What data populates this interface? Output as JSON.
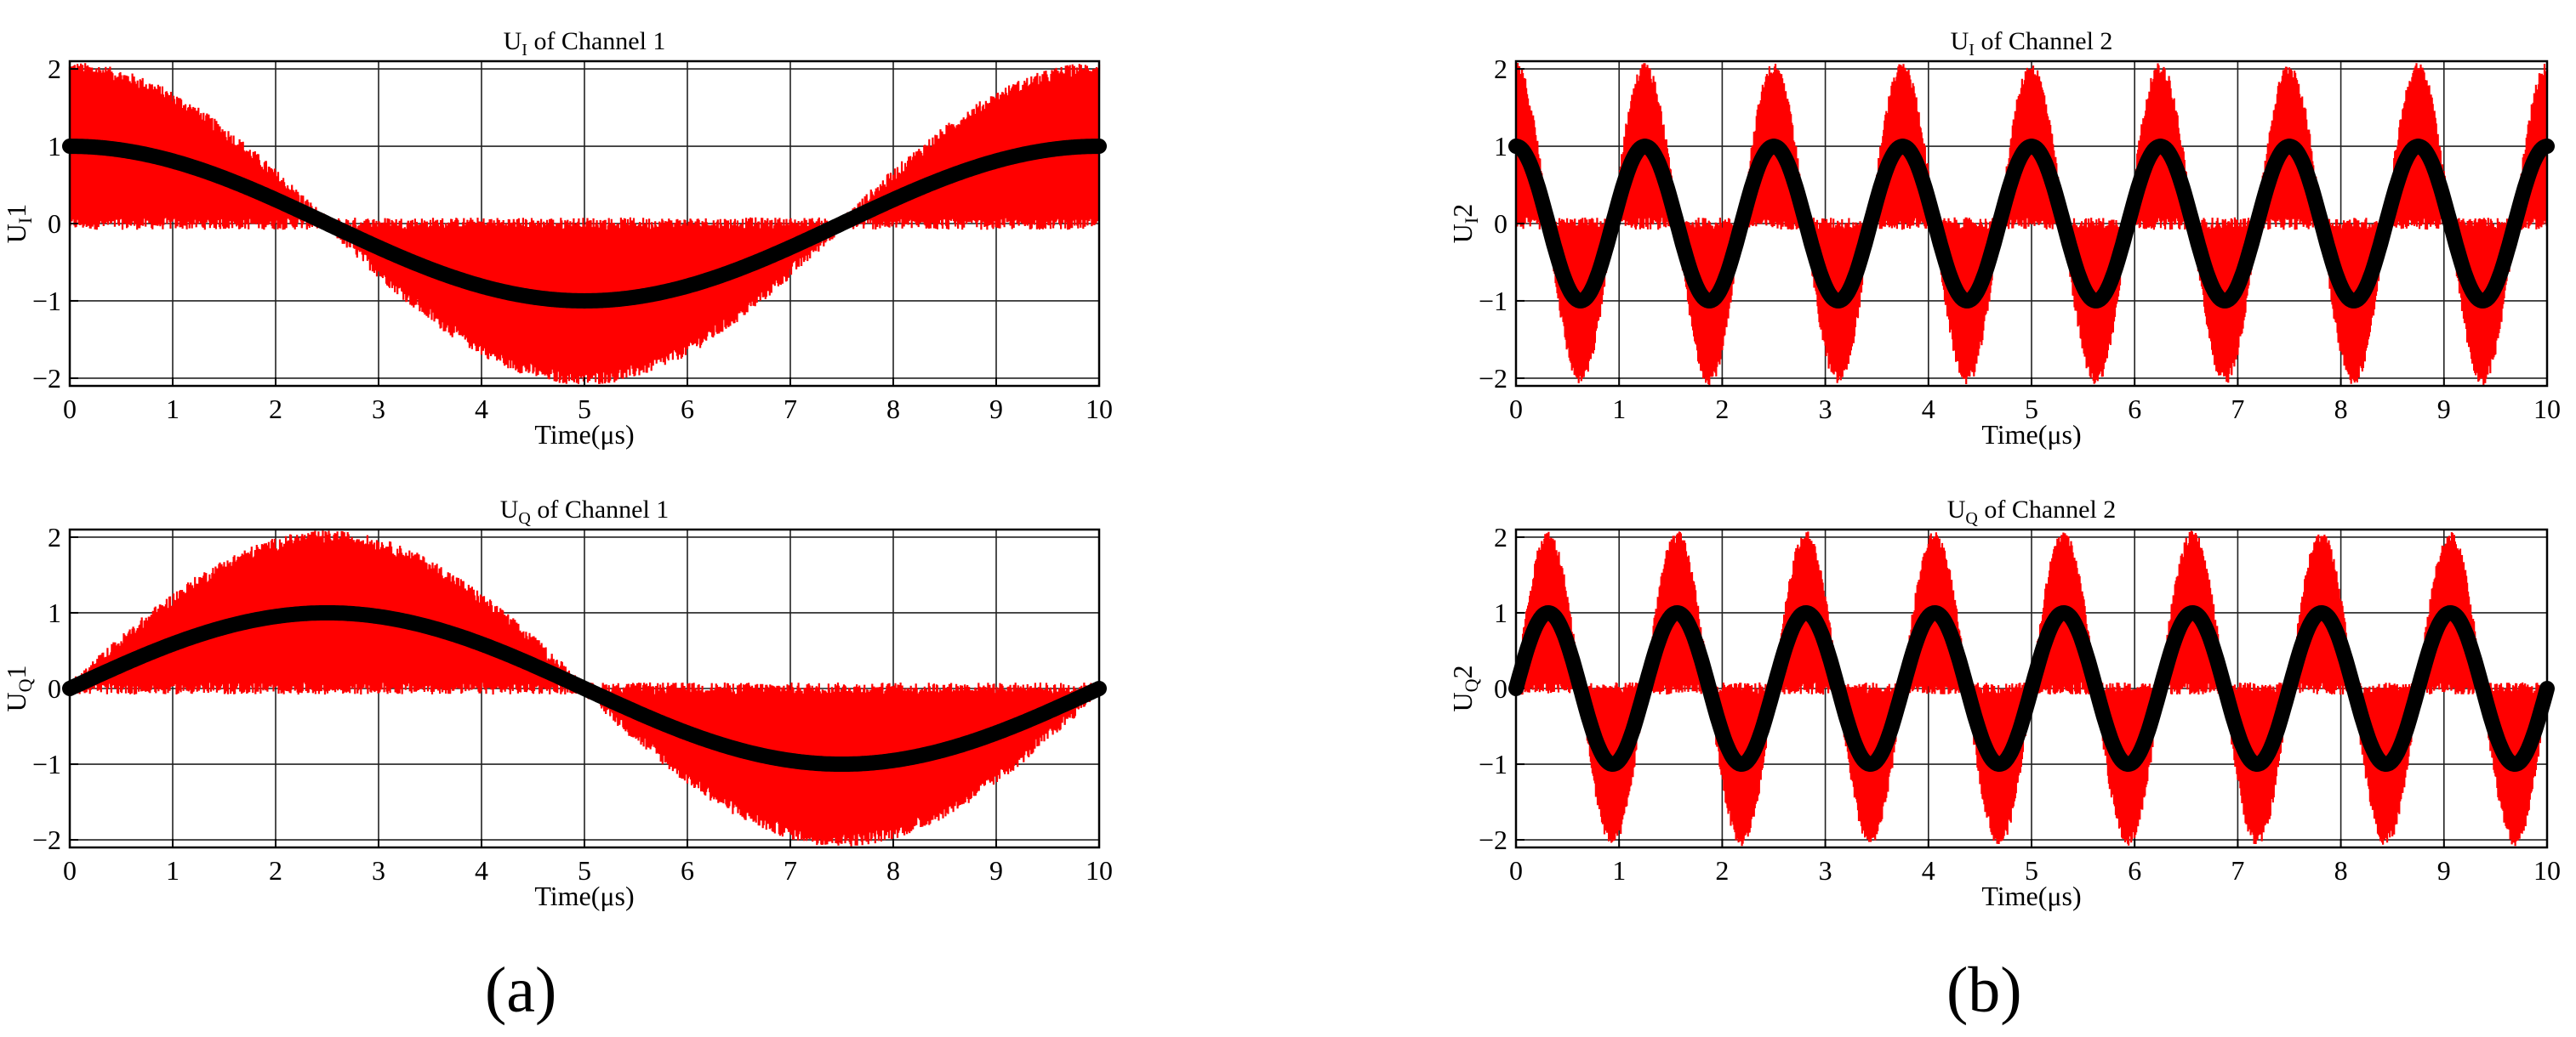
{
  "panel_labels": [
    "(a)",
    "(b)"
  ],
  "colors": {
    "raw": "#ff0000",
    "filtered": "#000000",
    "grid": "#222222",
    "axis": "#000000"
  },
  "chart_data": [
    {
      "type": "line",
      "panel": "(a)",
      "title": {
        "main": "U",
        "sub": "I",
        "rest": " of Channel 1"
      },
      "ylabel": {
        "main": "U",
        "sub": "I",
        "rest": "1"
      },
      "xlabel": "Time(μs)",
      "xlim": [
        0,
        10
      ],
      "ylim": [
        -2.1,
        2.1
      ],
      "xticks": [
        0,
        1,
        2,
        3,
        4,
        5,
        6,
        7,
        8,
        9,
        10
      ],
      "yticks": [
        -2,
        -1,
        0,
        1,
        2
      ],
      "ytick_labels": [
        "−2",
        "−1",
        "0",
        "1",
        "2"
      ],
      "grid": true,
      "signal": "cos",
      "periods_over_range": 1,
      "series": [
        {
          "values_description_x": [
            0,
            1.25,
            2.5,
            3.75,
            5,
            6.25,
            7.5,
            8.75,
            10
          ],
          "values": [
            1,
            0.71,
            0,
            -0.71,
            -1,
            -0.71,
            0,
            0.71,
            1
          ]
        },
        {
          "values_description_x": [
            0,
            1.25,
            2.5,
            3.75,
            5,
            6.25,
            7.5,
            8.75,
            10
          ],
          "values": [
            2,
            1.42,
            0,
            -1.42,
            -2,
            -1.42,
            0,
            1.42,
            2
          ]
        }
      ]
    },
    {
      "type": "line",
      "panel": "(b)",
      "title": {
        "main": "U",
        "sub": "I",
        "rest": " of Channel 2"
      },
      "ylabel": {
        "main": "U",
        "sub": "I",
        "rest": "2"
      },
      "xlabel": "Time(μs)",
      "xlim": [
        0,
        10
      ],
      "ylim": [
        -2.1,
        2.1
      ],
      "xticks": [
        0,
        1,
        2,
        3,
        4,
        5,
        6,
        7,
        8,
        9,
        10
      ],
      "yticks": [
        -2,
        -1,
        0,
        1,
        2
      ],
      "ytick_labels": [
        "−2",
        "−1",
        "0",
        "1",
        "2"
      ],
      "grid": true,
      "signal": "cos",
      "periods_over_range": 8,
      "series": [
        {
          "values_description_x": [
            0,
            0.625,
            1.25,
            1.875,
            2.5
          ],
          "values": [
            1,
            -1,
            1,
            -1,
            1
          ]
        },
        {
          "values_description_x": [
            0,
            0.625,
            1.25,
            1.875,
            2.5
          ],
          "values": [
            2,
            -2,
            2,
            -2,
            2
          ]
        }
      ]
    },
    {
      "type": "line",
      "panel": "(a)",
      "title": {
        "main": "U",
        "sub": "Q",
        "rest": " of Channel 1"
      },
      "ylabel": {
        "main": "U",
        "sub": "Q",
        "rest": "1"
      },
      "xlabel": "Time(μs)",
      "xlim": [
        0,
        10
      ],
      "ylim": [
        -2.1,
        2.1
      ],
      "xticks": [
        0,
        1,
        2,
        3,
        4,
        5,
        6,
        7,
        8,
        9,
        10
      ],
      "yticks": [
        -2,
        -1,
        0,
        1,
        2
      ],
      "ytick_labels": [
        "−2",
        "−1",
        "0",
        "1",
        "2"
      ],
      "grid": true,
      "signal": "sin",
      "periods_over_range": 1,
      "series": [
        {
          "values_description_x": [
            0,
            1.25,
            2.5,
            3.75,
            5,
            6.25,
            7.5,
            8.75,
            10
          ],
          "values": [
            0,
            0.71,
            1,
            0.71,
            0,
            -0.71,
            -1,
            -0.71,
            0
          ]
        },
        {
          "values_description_x": [
            0,
            1.25,
            2.5,
            3.75,
            5,
            6.25,
            7.5,
            8.75,
            10
          ],
          "values": [
            0,
            1.42,
            2,
            1.42,
            0,
            -1.42,
            -2,
            -1.42,
            0
          ]
        }
      ]
    },
    {
      "type": "line",
      "panel": "(b)",
      "title": {
        "main": "U",
        "sub": "Q",
        "rest": " of Channel 2"
      },
      "ylabel": {
        "main": "U",
        "sub": "Q",
        "rest": "2"
      },
      "xlabel": "Time(μs)",
      "xlim": [
        0,
        10
      ],
      "ylim": [
        -2.1,
        2.1
      ],
      "xticks": [
        0,
        1,
        2,
        3,
        4,
        5,
        6,
        7,
        8,
        9,
        10
      ],
      "yticks": [
        -2,
        -1,
        0,
        1,
        2
      ],
      "ytick_labels": [
        "−2",
        "−1",
        "0",
        "1",
        "2"
      ],
      "grid": true,
      "signal": "sin",
      "periods_over_range": 8,
      "series": [
        {
          "values_description_x": [
            0,
            0.3125,
            0.625,
            0.9375,
            1.25
          ],
          "values": [
            0,
            1,
            0,
            -1,
            0
          ]
        },
        {
          "values_description_x": [
            0,
            0.3125,
            0.625,
            0.9375,
            1.25
          ],
          "values": [
            0,
            2,
            0,
            -2,
            0
          ]
        }
      ]
    }
  ]
}
